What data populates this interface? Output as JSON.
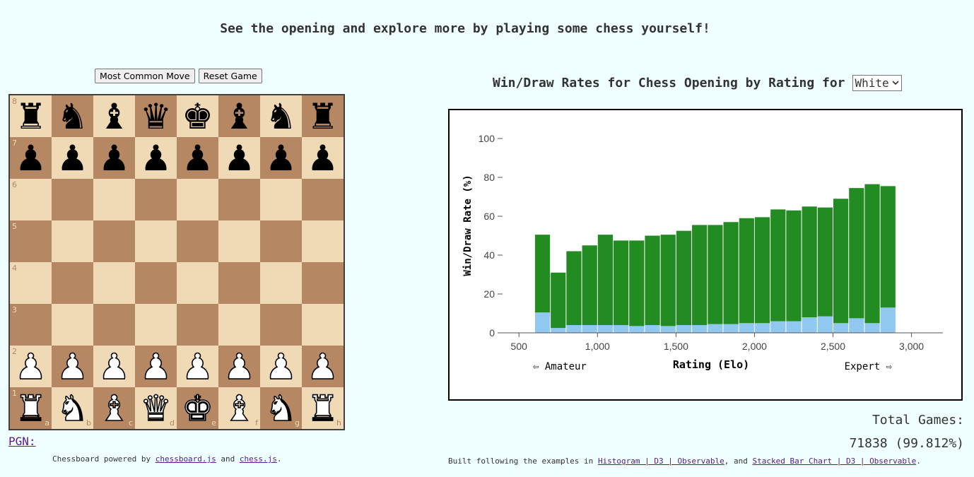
{
  "header": {
    "text": "See the opening and explore more by playing some chess yourself!"
  },
  "controls": {
    "most_common_move": "Most Common Move",
    "reset_game": "Reset Game"
  },
  "board": {
    "colors": {
      "light": "#f0d9b5",
      "dark": "#b58863"
    },
    "ranks": [
      "8",
      "7",
      "6",
      "5",
      "4",
      "3",
      "2",
      "1"
    ],
    "files": [
      "a",
      "b",
      "c",
      "d",
      "e",
      "f",
      "g",
      "h"
    ],
    "position": [
      [
        "bR",
        "bN",
        "bB",
        "bQ",
        "bK",
        "bB",
        "bN",
        "bR"
      ],
      [
        "bP",
        "bP",
        "bP",
        "bP",
        "bP",
        "bP",
        "bP",
        "bP"
      ],
      [
        "",
        "",
        "",
        "",
        "",
        "",
        "",
        ""
      ],
      [
        "",
        "",
        "",
        "",
        "",
        "",
        "",
        ""
      ],
      [
        "",
        "",
        "",
        "",
        "",
        "",
        "",
        ""
      ],
      [
        "",
        "",
        "",
        "",
        "",
        "",
        "",
        ""
      ],
      [
        "wP",
        "wP",
        "wP",
        "wP",
        "wP",
        "wP",
        "wP",
        "wP"
      ],
      [
        "wR",
        "wN",
        "wB",
        "wQ",
        "wK",
        "wB",
        "wN",
        "wR"
      ]
    ]
  },
  "pgn": {
    "label": "PGN:"
  },
  "credits_left": {
    "prefix": "Chessboard powered by",
    "link1": "chessboard.js",
    "mid": "and",
    "link2": "chess.js",
    "suffix": "."
  },
  "chart_header": {
    "title": "Win/Draw Rates for Chess Opening by Rating for",
    "selected_side": "White"
  },
  "chart_data": {
    "type": "bar",
    "stacked": true,
    "xlabel": "Rating (Elo)",
    "ylabel": "Win/Draw Rate (%)",
    "xlim": [
      400,
      3200
    ],
    "ylim": [
      0,
      100
    ],
    "xticks": [
      500,
      1000,
      1500,
      2000,
      2500,
      3000
    ],
    "xtick_labels": [
      "500",
      "1,000",
      "1,500",
      "2,000",
      "2,500",
      "3,000"
    ],
    "yticks": [
      0,
      20,
      40,
      60,
      80,
      100
    ],
    "left_annotation": "⇦ Amateur",
    "right_annotation": "Expert ⇨",
    "bin_width": 100,
    "bin_starts": [
      600,
      700,
      800,
      900,
      1000,
      1100,
      1200,
      1300,
      1400,
      1500,
      1600,
      1700,
      1800,
      1900,
      2000,
      2100,
      2200,
      2300,
      2400,
      2500,
      2600,
      2700,
      2800
    ],
    "series": [
      {
        "color": "#90c8f0",
        "values": [
          10.5,
          2.5,
          4,
          4,
          4,
          4,
          3.5,
          4,
          3.5,
          4,
          4,
          4.5,
          4.5,
          5,
          5,
          6,
          6,
          8,
          8.5,
          5,
          7.5,
          5,
          13
        ]
      },
      {
        "color": "#228b22",
        "values": [
          40,
          28.5,
          38,
          41,
          46.5,
          43.5,
          44,
          46,
          47,
          48.5,
          51.5,
          51,
          52.5,
          54,
          54.5,
          57.5,
          57,
          57,
          56,
          64,
          67,
          71.5,
          62.5
        ]
      }
    ]
  },
  "total": {
    "label": "Total Games:",
    "value": "71838 (99.812%)"
  },
  "credits_right": {
    "prefix": "Built following the examples in",
    "link1": "Histogram | D3 | Observable",
    "mid": ", and",
    "link2": "Stacked Bar Chart | D3 | Observable",
    "suffix": "."
  }
}
